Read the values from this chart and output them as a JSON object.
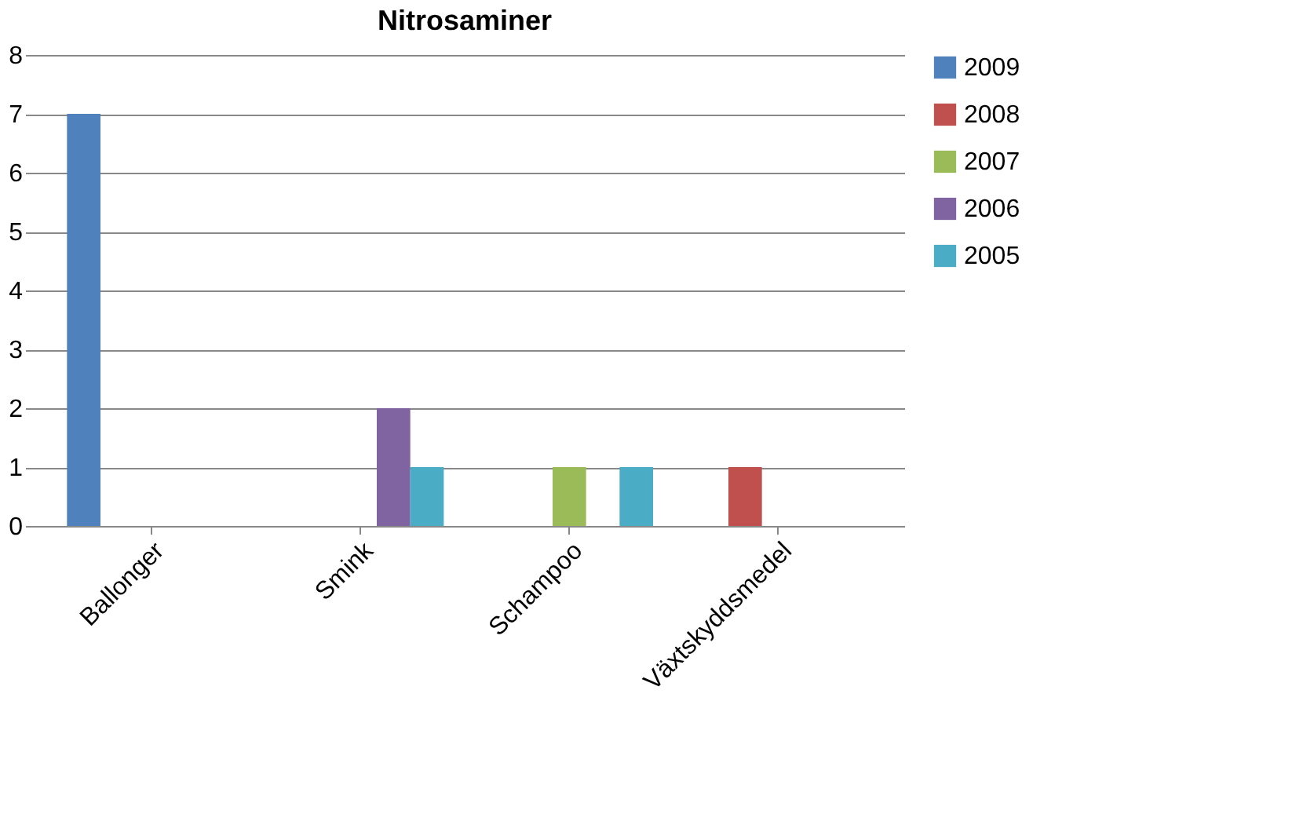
{
  "chart_data": {
    "type": "bar",
    "title": "Nitrosaminer",
    "categories": [
      "Ballonger",
      "Smink",
      "Schampoo",
      "Växtskyddsmedel"
    ],
    "series": [
      {
        "name": "2009",
        "color": "#4f81bd",
        "values": [
          7,
          0,
          0,
          0
        ]
      },
      {
        "name": "2008",
        "color": "#c0504d",
        "values": [
          0,
          0,
          0,
          1
        ]
      },
      {
        "name": "2007",
        "color": "#9bbb59",
        "values": [
          0,
          0,
          1,
          0
        ]
      },
      {
        "name": "2006",
        "color": "#8064a2",
        "values": [
          0,
          2,
          0,
          0
        ]
      },
      {
        "name": "2005",
        "color": "#4bacc6",
        "values": [
          0,
          1,
          1,
          0
        ]
      }
    ],
    "ylim": [
      0,
      8
    ],
    "yticks": [
      0,
      1,
      2,
      3,
      4,
      5,
      6,
      7,
      8
    ],
    "grid": "y",
    "legend": "right"
  }
}
